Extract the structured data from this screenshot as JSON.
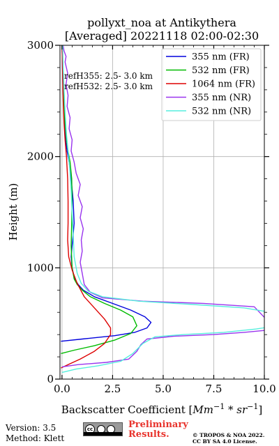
{
  "chart_data": {
    "type": "line",
    "title_line1": "pollyxt_noa at Antikythera",
    "title_line2": "[Averaged] 20221118 02:00-02:30",
    "xlabel_prefix": "Backscatter Coefficient [",
    "xlabel_unit_main": "Mm",
    "xlabel_unit_exp1": "−1",
    "xlabel_unit_mid": " * ",
    "xlabel_unit_sr": "sr",
    "xlabel_unit_exp2": "−1",
    "xlabel_suffix": "]",
    "ylabel": "Height (m)",
    "xlim": [
      -0.1,
      10.0
    ],
    "ylim": [
      0,
      3000
    ],
    "xticks": [
      0.0,
      2.5,
      5.0,
      7.5,
      10.0
    ],
    "xtick_labels": [
      "0.0",
      "2.5",
      "5.0",
      "7.5",
      "10.0"
    ],
    "yticks": [
      0,
      1000,
      2000,
      3000
    ],
    "ytick_labels": [
      "0",
      "1000",
      "2000",
      "3000"
    ],
    "grid": true,
    "legend_position": "top-right",
    "annotations": [
      "refH355:  2.5- 3.0 km",
      "refH532:  2.5- 3.0 km"
    ],
    "series": [
      {
        "name": "355 nm (FR)",
        "color": "#0000dd",
        "x": [
          -0.05,
          1.0,
          2.6,
          3.6,
          4.2,
          4.4,
          4.1,
          3.4,
          2.5,
          1.6,
          1.05,
          0.8,
          0.62,
          0.5,
          0.45,
          0.5,
          0.55,
          0.6,
          0.55,
          0.45,
          0.35,
          0.25,
          0.18,
          0.12,
          0.08,
          0.05,
          0.02,
          0.0
        ],
        "y": [
          340,
          360,
          390,
          420,
          460,
          510,
          560,
          620,
          680,
          740,
          800,
          850,
          900,
          1000,
          1100,
          1200,
          1300,
          1400,
          1600,
          1800,
          1950,
          2050,
          2150,
          2300,
          2450,
          2600,
          2800,
          3000
        ]
      },
      {
        "name": "532 nm (FR)",
        "color": "#00bb00",
        "x": [
          -0.05,
          0.6,
          1.6,
          2.6,
          3.4,
          3.7,
          3.5,
          2.9,
          2.1,
          1.4,
          1.0,
          0.75,
          0.6,
          0.5,
          0.45,
          0.48,
          0.5,
          0.48,
          0.4,
          0.3,
          0.22,
          0.15,
          0.1,
          0.06,
          0.03,
          0.0
        ],
        "y": [
          230,
          260,
          300,
          350,
          410,
          480,
          560,
          620,
          680,
          740,
          800,
          850,
          900,
          1000,
          1200,
          1400,
          1600,
          1800,
          1950,
          2050,
          2150,
          2300,
          2450,
          2600,
          2800,
          3000
        ]
      },
      {
        "name": "1064 nm (FR)",
        "color": "#dd0000",
        "x": [
          -0.05,
          0.3,
          0.9,
          1.6,
          2.1,
          2.4,
          2.4,
          2.1,
          1.6,
          1.1,
          0.75,
          0.5,
          0.33,
          0.28,
          0.3,
          0.3,
          0.28,
          0.22,
          0.15,
          0.1,
          0.06,
          0.03,
          0.0
        ],
        "y": [
          100,
          130,
          180,
          250,
          320,
          400,
          460,
          540,
          640,
          740,
          860,
          980,
          1100,
          1250,
          1400,
          1600,
          1800,
          2000,
          2150,
          2300,
          2500,
          2750,
          3000
        ]
      },
      {
        "name": "355 nm (NR)",
        "color": "#9933ee",
        "x": [
          0.0,
          0.8,
          2.2,
          3.3,
          3.7,
          3.9,
          4.2,
          5.5,
          7.5,
          9.0,
          10.2,
          10.5,
          9.5,
          7.0,
          4.0,
          2.0,
          1.4,
          1.1,
          1.0,
          0.9,
          1.0,
          0.95,
          1.05,
          0.9,
          1.0,
          0.8,
          0.9,
          0.7,
          0.6,
          0.45,
          0.5,
          0.35,
          0.4,
          0.25,
          0.3,
          0.2,
          0.28,
          0.15,
          0.2,
          0.1,
          0.05
        ],
        "y": [
          110,
          130,
          150,
          180,
          250,
          310,
          360,
          385,
          400,
          420,
          440,
          460,
          650,
          680,
          700,
          730,
          780,
          850,
          950,
          1050,
          1150,
          1250,
          1350,
          1450,
          1550,
          1650,
          1750,
          1850,
          1950,
          2050,
          2150,
          2250,
          2350,
          2450,
          2550,
          2650,
          2750,
          2850,
          2900,
          2950,
          3000
        ]
      },
      {
        "name": "532 nm (NR)",
        "color": "#55eedd",
        "x": [
          0.0,
          0.7,
          1.8,
          2.9,
          3.5,
          4.0,
          4.6,
          6.0,
          8.0,
          9.6,
          10.3,
          10.3,
          9.0,
          6.5,
          3.8,
          2.0,
          1.3,
          0.95,
          0.75,
          0.6,
          0.55,
          0.5,
          0.45,
          0.38,
          0.3,
          0.22,
          0.15,
          0.1,
          0.06,
          0.03
        ],
        "y": [
          60,
          90,
          120,
          160,
          230,
          320,
          380,
          400,
          420,
          450,
          470,
          600,
          640,
          670,
          700,
          740,
          790,
          860,
          950,
          1100,
          1300,
          1500,
          1700,
          1900,
          2050,
          2200,
          2400,
          2600,
          2800,
          3000
        ]
      }
    ]
  },
  "footer": {
    "version": "Version: 3.5",
    "method": "Method: Klett",
    "preliminary_line1": "Preliminary",
    "preliminary_line2": "Results.",
    "copyright_line1": "© TROPOS & NOA 2022.",
    "copyright_line2": "CC BY SA 4.0 License.",
    "license_badge_cc": "cc",
    "license_badge_by": "BY",
    "license_badge_sa": "SA"
  }
}
